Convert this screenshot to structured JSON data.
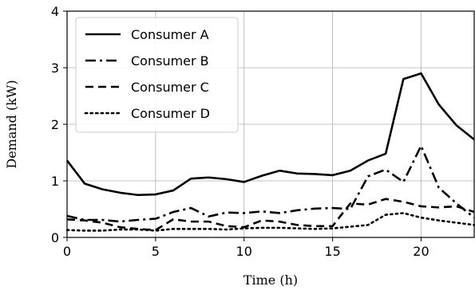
{
  "chart_data": {
    "type": "line",
    "xlabel": "Time (h)",
    "ylabel": "Demand (kW)",
    "xlim": [
      0,
      23
    ],
    "ylim": [
      0,
      4
    ],
    "xticks": [
      0,
      5,
      10,
      15,
      20
    ],
    "yticks": [
      0,
      1,
      2,
      3,
      4
    ],
    "grid": true,
    "legend_position": "top-left",
    "x": [
      0,
      1,
      2,
      3,
      4,
      5,
      6,
      7,
      8,
      9,
      10,
      11,
      12,
      13,
      14,
      15,
      16,
      17,
      18,
      19,
      20,
      21,
      22,
      23
    ],
    "series": [
      {
        "name": "Consumer A",
        "style": "solid",
        "color": "#000000",
        "values": [
          1.36,
          0.95,
          0.85,
          0.79,
          0.75,
          0.76,
          0.83,
          1.04,
          1.06,
          1.03,
          0.98,
          1.09,
          1.18,
          1.13,
          1.12,
          1.1,
          1.18,
          1.36,
          1.48,
          2.8,
          2.9,
          2.35,
          1.98,
          1.73
        ]
      },
      {
        "name": "Consumer B",
        "style": "dashdot",
        "color": "#000000",
        "values": [
          0.38,
          0.31,
          0.31,
          0.28,
          0.31,
          0.33,
          0.45,
          0.52,
          0.37,
          0.44,
          0.43,
          0.46,
          0.43,
          0.48,
          0.51,
          0.52,
          0.5,
          1.08,
          1.2,
          0.98,
          1.62,
          0.88,
          0.6,
          0.35
        ]
      },
      {
        "name": "Consumer C",
        "style": "dashed",
        "color": "#000000",
        "values": [
          0.32,
          0.3,
          0.26,
          0.18,
          0.15,
          0.13,
          0.32,
          0.28,
          0.28,
          0.2,
          0.18,
          0.3,
          0.28,
          0.22,
          0.2,
          0.2,
          0.6,
          0.58,
          0.68,
          0.63,
          0.55,
          0.53,
          0.55,
          0.45
        ]
      },
      {
        "name": "Consumer D",
        "style": "dotted",
        "color": "#000000",
        "values": [
          0.13,
          0.12,
          0.12,
          0.14,
          0.14,
          0.12,
          0.15,
          0.15,
          0.15,
          0.14,
          0.16,
          0.17,
          0.17,
          0.16,
          0.15,
          0.16,
          0.19,
          0.22,
          0.4,
          0.43,
          0.35,
          0.3,
          0.26,
          0.22
        ]
      }
    ]
  }
}
